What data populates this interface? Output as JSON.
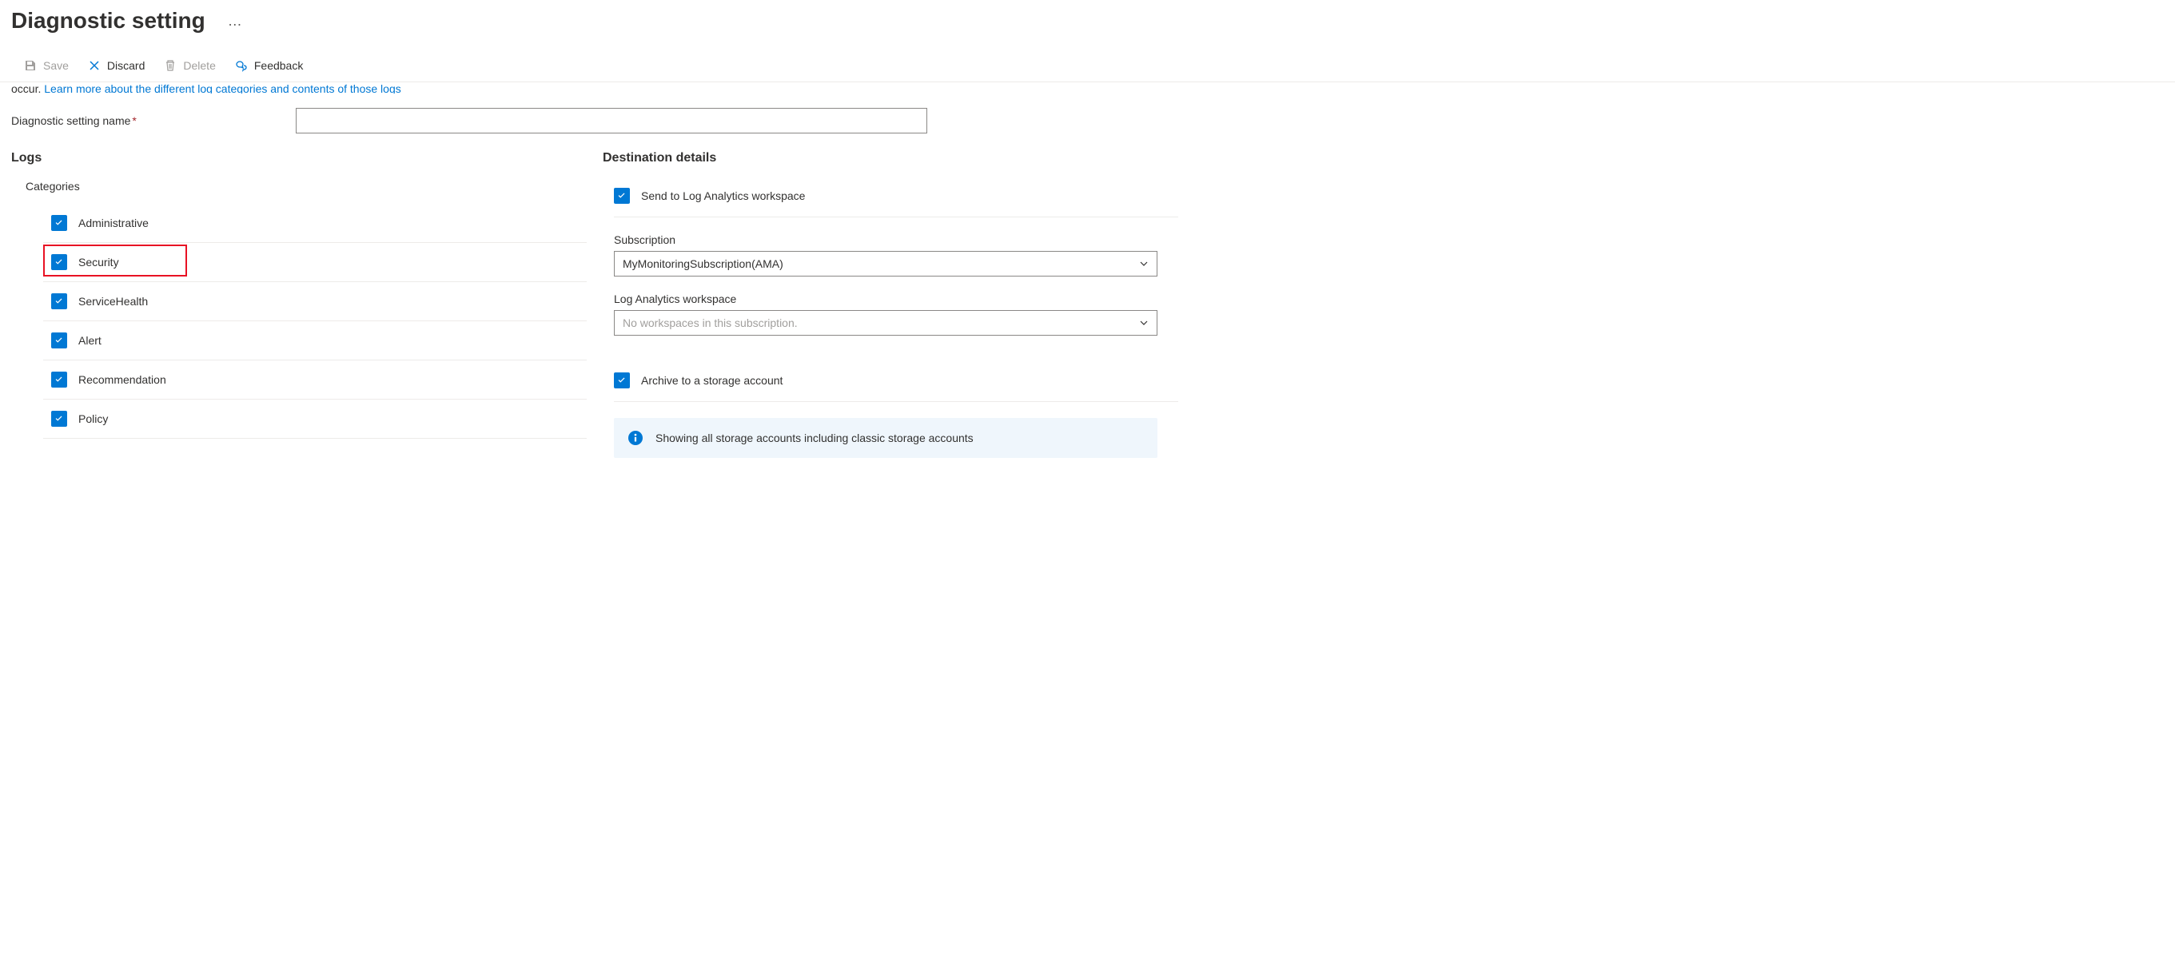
{
  "header": {
    "title": "Diagnostic setting",
    "more": "…"
  },
  "toolbar": {
    "save": "Save",
    "discard": "Discard",
    "delete": "Delete",
    "feedback": "Feedback"
  },
  "intro": {
    "prefix": "occur. ",
    "link": "Learn more about the different log categories and contents of those logs"
  },
  "name_field": {
    "label": "Diagnostic setting name",
    "value": ""
  },
  "logs": {
    "section_title": "Logs",
    "categories_label": "Categories",
    "categories": [
      {
        "label": "Administrative",
        "checked": true,
        "highlighted": false
      },
      {
        "label": "Security",
        "checked": true,
        "highlighted": true
      },
      {
        "label": "ServiceHealth",
        "checked": true,
        "highlighted": false
      },
      {
        "label": "Alert",
        "checked": true,
        "highlighted": false
      },
      {
        "label": "Recommendation",
        "checked": true,
        "highlighted": false
      },
      {
        "label": "Policy",
        "checked": true,
        "highlighted": false
      }
    ]
  },
  "destination": {
    "section_title": "Destination details",
    "log_analytics": {
      "label": "Send to Log Analytics workspace",
      "checked": true,
      "subscription_label": "Subscription",
      "subscription_value": "MyMonitoringSubscription(AMA)",
      "workspace_label": "Log Analytics workspace",
      "workspace_placeholder": "No workspaces in this subscription."
    },
    "archive": {
      "label": "Archive to a storage account",
      "checked": true,
      "info_text": "Showing all storage accounts including classic storage accounts"
    }
  },
  "colors": {
    "primary": "#0078d4",
    "highlight_border": "#e81123",
    "text": "#323130",
    "disabled": "#a19f9d"
  }
}
